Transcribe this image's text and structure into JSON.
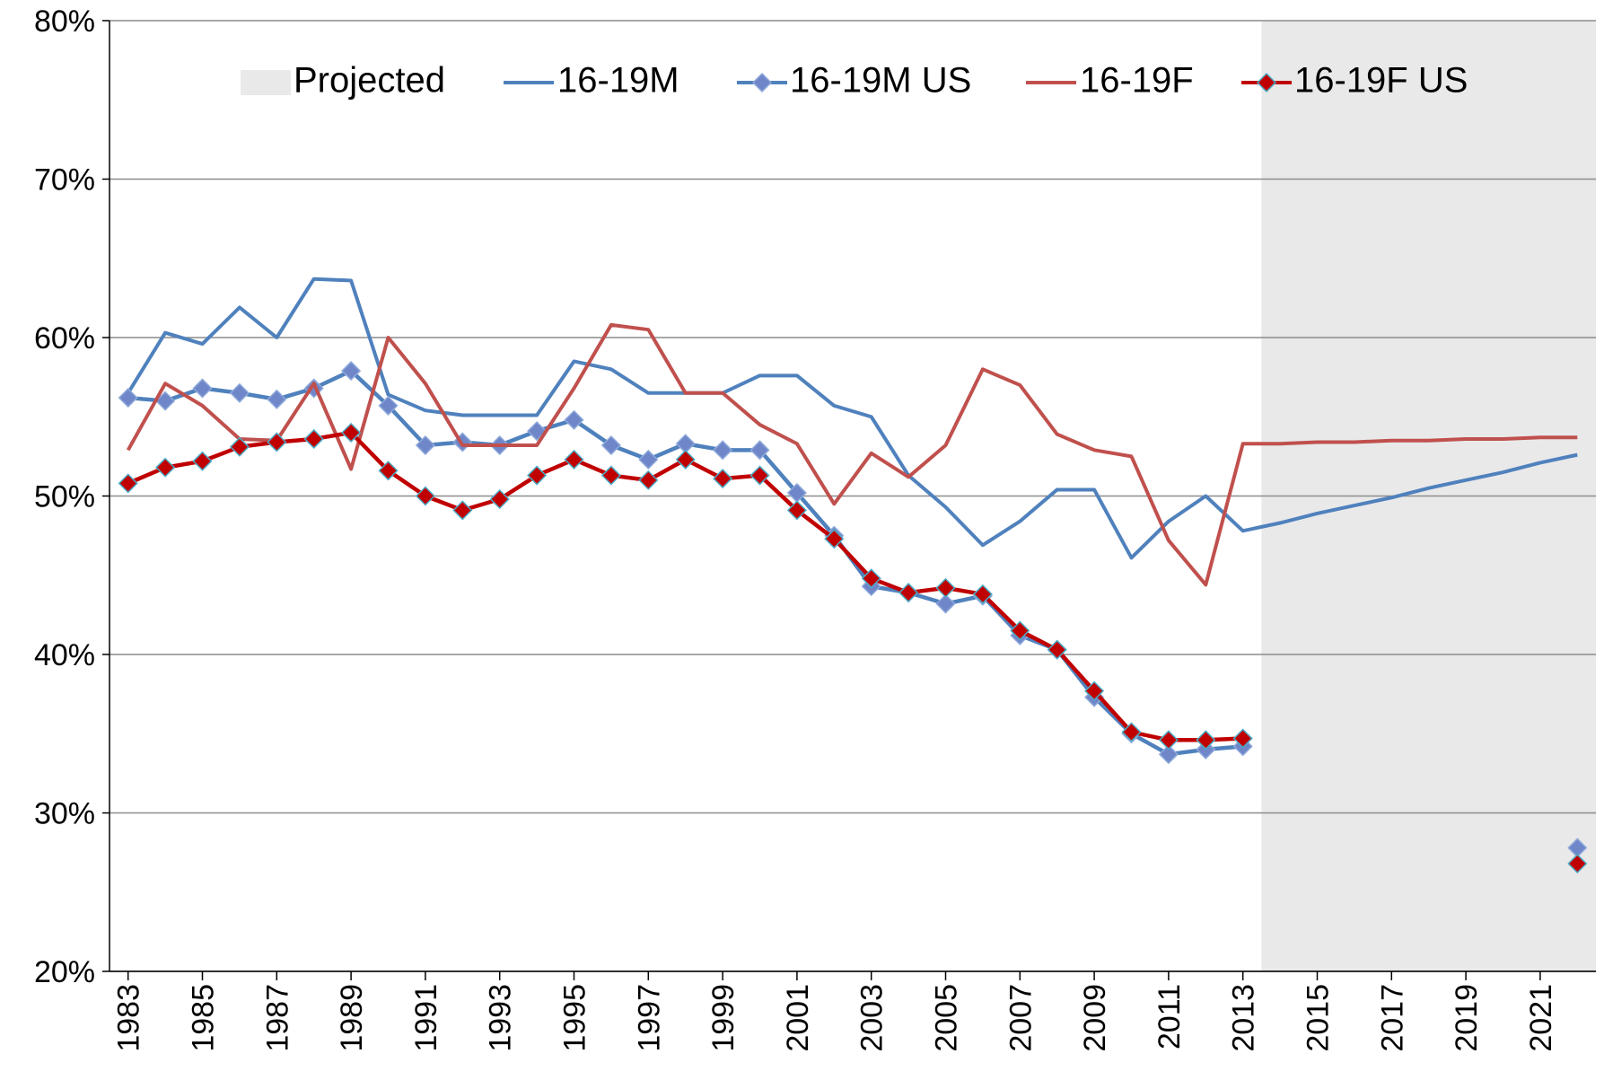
{
  "chart_data": {
    "type": "line",
    "x": [
      1983,
      1984,
      1985,
      1986,
      1987,
      1988,
      1989,
      1990,
      1991,
      1992,
      1993,
      1994,
      1995,
      1996,
      1997,
      1998,
      1999,
      2000,
      2001,
      2002,
      2003,
      2004,
      2005,
      2006,
      2007,
      2008,
      2009,
      2010,
      2011,
      2012,
      2013,
      2014,
      2015,
      2016,
      2017,
      2018,
      2019,
      2020,
      2021,
      2022
    ],
    "xlim": [
      1982.5,
      2022.5
    ],
    "xticks": [
      1983,
      1985,
      1987,
      1989,
      1991,
      1993,
      1995,
      1997,
      1999,
      2001,
      2003,
      2005,
      2007,
      2009,
      2011,
      2013,
      2015,
      2017,
      2019,
      2021
    ],
    "ylim": [
      20,
      80
    ],
    "yticks": [
      {
        "value": 20,
        "label": "20%"
      },
      {
        "value": 30,
        "label": "30%"
      },
      {
        "value": 40,
        "label": "40%"
      },
      {
        "value": 50,
        "label": "50%"
      },
      {
        "value": 60,
        "label": "60%"
      },
      {
        "value": 70,
        "label": "70%"
      },
      {
        "value": 80,
        "label": "80%"
      }
    ],
    "grid": true,
    "shaded_region": {
      "name": "Projected",
      "x": [
        2013.5,
        2022.5
      ],
      "color": "#e9e9e9"
    },
    "series": [
      {
        "name": "16-19M",
        "color": "#4f81bd",
        "values": [
          56.5,
          60.3,
          59.6,
          61.9,
          60.0,
          63.7,
          63.6,
          56.4,
          55.4,
          55.1,
          55.1,
          55.1,
          58.5,
          58.0,
          56.5,
          56.5,
          56.5,
          57.6,
          57.6,
          55.7,
          55.0,
          51.3,
          49.3,
          46.9,
          48.4,
          50.4,
          50.4,
          46.1,
          48.4,
          50.0,
          47.8,
          48.3,
          48.9,
          49.4,
          49.9,
          50.5,
          51.0,
          51.5,
          52.1,
          52.6
        ]
      },
      {
        "name": "16-19M US",
        "color": "#4f81bd",
        "marker": "diamond",
        "marker_color": "#6f86c9",
        "values": [
          56.2,
          56.0,
          56.8,
          56.5,
          56.1,
          56.8,
          57.9,
          55.7,
          53.2,
          53.4,
          53.2,
          54.1,
          54.8,
          53.2,
          52.3,
          53.3,
          52.9,
          52.9,
          50.2,
          47.5,
          44.3,
          43.9,
          43.2,
          43.7,
          41.2,
          40.3,
          37.3,
          35.0,
          33.7,
          34.0,
          34.2,
          null,
          null,
          null,
          null,
          null,
          null,
          null,
          null,
          27.8
        ]
      },
      {
        "name": "16-19F",
        "color": "#c0504d",
        "values": [
          52.9,
          57.1,
          55.7,
          53.6,
          53.5,
          57.1,
          51.7,
          60.0,
          57.1,
          53.2,
          53.2,
          53.2,
          56.8,
          60.8,
          60.5,
          56.5,
          56.5,
          54.5,
          53.3,
          49.5,
          52.7,
          51.2,
          53.2,
          58.0,
          57.0,
          53.9,
          52.9,
          52.5,
          47.2,
          44.4,
          53.3,
          53.3,
          53.4,
          53.4,
          53.5,
          53.5,
          53.6,
          53.6,
          53.7,
          53.7
        ]
      },
      {
        "name": "16-19F US",
        "color": "#c00000",
        "marker": "diamond",
        "marker_color": "#c00000",
        "values": [
          50.8,
          51.8,
          52.2,
          53.1,
          53.4,
          53.6,
          54.0,
          51.6,
          50.0,
          49.1,
          49.8,
          51.3,
          52.3,
          51.3,
          51.0,
          52.3,
          51.1,
          51.3,
          49.1,
          47.3,
          44.8,
          43.9,
          44.2,
          43.8,
          41.5,
          40.3,
          37.7,
          35.1,
          34.6,
          34.6,
          34.7,
          null,
          null,
          null,
          null,
          null,
          null,
          null,
          null,
          26.8
        ]
      }
    ]
  }
}
